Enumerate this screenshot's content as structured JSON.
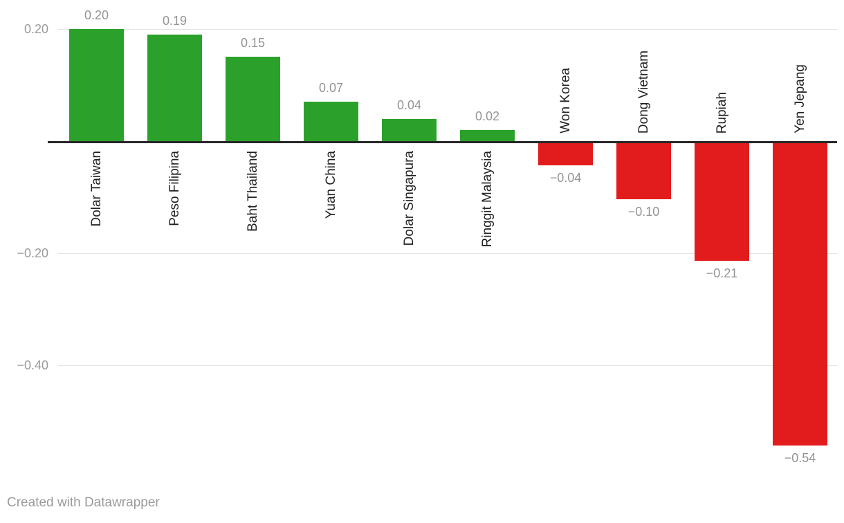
{
  "chart_data": {
    "type": "bar",
    "categories": [
      "Dolar Taiwan",
      "Peso Filipina",
      "Baht Thailand",
      "Yuan China",
      "Dolar Singapura",
      "Ringgit Malaysia",
      "Won Korea",
      "Dong Vietnam",
      "Rupiah",
      "Yen Jepang"
    ],
    "values": [
      0.2,
      0.19,
      0.15,
      0.07,
      0.04,
      0.02,
      -0.04,
      -0.1,
      -0.21,
      -0.54
    ],
    "value_labels": [
      "0.20",
      "0.19",
      "0.15",
      "0.07",
      "0.04",
      "0.02",
      "−0.04",
      "−0.10",
      "−0.21",
      "−0.54"
    ],
    "title": "",
    "xlabel": "",
    "ylabel": "",
    "ylim": [
      -0.6,
      0.25
    ],
    "baseline_value": 0,
    "grid": true,
    "legend": "none",
    "y_ticks": [
      {
        "value": 0.2,
        "label": "0.20"
      },
      {
        "value": -0.2,
        "label": "−0.20"
      },
      {
        "value": -0.4,
        "label": "−0.40"
      }
    ],
    "colors": {
      "positive": "#2ba12b",
      "negative": "#e21c1c",
      "gridline": "#e4e4e4",
      "baseline": "#262626",
      "tick_label": "#9a9a9a",
      "value_label": "#949494",
      "category_label": "#222222"
    }
  },
  "footer": {
    "credit": "Created with Datawrapper"
  }
}
